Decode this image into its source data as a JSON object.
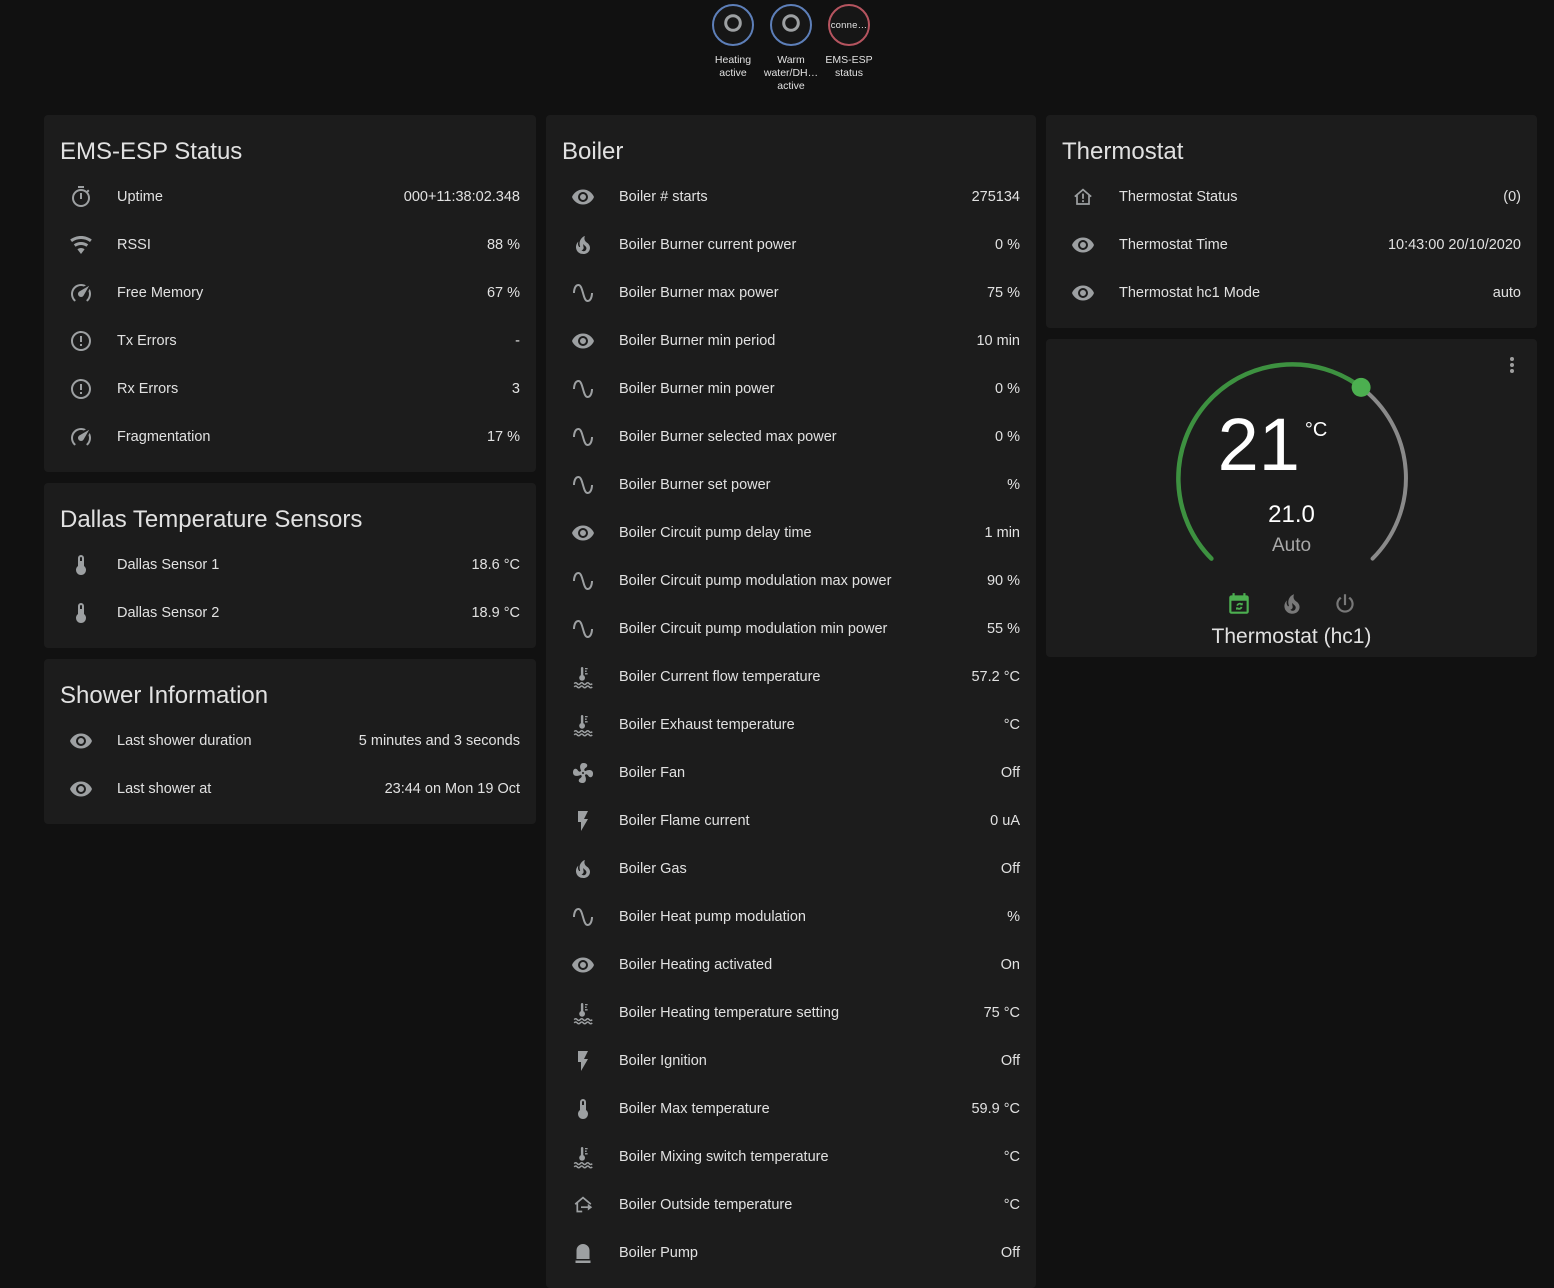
{
  "colors": {
    "background": "#111111",
    "card": "#1c1c1c",
    "text": "#e1e1e1",
    "muted": "#9e9e9e",
    "icon": "#9da0a2",
    "green": "#3d9140",
    "green_bright": "#4caf50",
    "arc_gray": "#8a8a8a",
    "badge_blue": "#5d7fb9",
    "badge_red": "#b5545f"
  },
  "badges": [
    {
      "name": "badge-heating-active",
      "style": "blue",
      "glyph": "ring-icon",
      "label": "Heating\nactive"
    },
    {
      "name": "badge-warm-water-dhw-active",
      "style": "blue",
      "glyph": "ring-icon",
      "label": "Warm\nwater/DH…\nactive"
    },
    {
      "name": "badge-ems-esp-status",
      "style": "red",
      "state_text": "conne…",
      "label": "EMS-ESP\nstatus"
    }
  ],
  "cards": {
    "ems": {
      "title": "EMS-ESP Status",
      "rows": [
        {
          "icon": "timer-icon",
          "label": "Uptime",
          "value": "000+11:38:02.348"
        },
        {
          "icon": "wifi-icon",
          "label": "RSSI",
          "value": "88 %"
        },
        {
          "icon": "gauge-icon",
          "label": "Free Memory",
          "value": "67 %"
        },
        {
          "icon": "alert-circle-icon",
          "label": "Tx Errors",
          "value": "-"
        },
        {
          "icon": "alert-circle-icon",
          "label": "Rx Errors",
          "value": "3"
        },
        {
          "icon": "gauge-icon",
          "label": "Fragmentation",
          "value": "17 %"
        }
      ]
    },
    "dallas": {
      "title": "Dallas Temperature Sensors",
      "rows": [
        {
          "icon": "thermometer-icon",
          "label": "Dallas Sensor 1",
          "value": "18.6 °C"
        },
        {
          "icon": "thermometer-icon",
          "label": "Dallas Sensor 2",
          "value": "18.9 °C"
        }
      ]
    },
    "shower": {
      "title": "Shower Information",
      "rows": [
        {
          "icon": "eye-icon",
          "label": "Last shower duration",
          "value": "5 minutes and 3 seconds"
        },
        {
          "icon": "eye-icon",
          "label": "Last shower at",
          "value": "23:44 on Mon 19 Oct"
        }
      ]
    },
    "boiler": {
      "title": "Boiler",
      "rows": [
        {
          "icon": "eye-icon",
          "label": "Boiler # starts",
          "value": "275134"
        },
        {
          "icon": "fire-icon",
          "label": "Boiler Burner current power",
          "value": "0 %"
        },
        {
          "icon": "sine-wave-icon",
          "label": "Boiler Burner max power",
          "value": "75 %"
        },
        {
          "icon": "eye-icon",
          "label": "Boiler Burner min period",
          "value": "10 min"
        },
        {
          "icon": "sine-wave-icon",
          "label": "Boiler Burner min power",
          "value": "0 %"
        },
        {
          "icon": "sine-wave-icon",
          "label": "Boiler Burner selected max power",
          "value": "0 %"
        },
        {
          "icon": "sine-wave-icon",
          "label": "Boiler Burner set power",
          "value": "%"
        },
        {
          "icon": "eye-icon",
          "label": "Boiler Circuit pump delay time",
          "value": "1 min"
        },
        {
          "icon": "sine-wave-icon",
          "label": "Boiler Circuit pump modulation max power",
          "value": "90 %"
        },
        {
          "icon": "sine-wave-icon",
          "label": "Boiler Circuit pump modulation min power",
          "value": "55 %"
        },
        {
          "icon": "coolant-thermometer-icon",
          "label": "Boiler Current flow temperature",
          "value": "57.2 °C"
        },
        {
          "icon": "coolant-thermometer-icon",
          "label": "Boiler Exhaust temperature",
          "value": "°C"
        },
        {
          "icon": "fan-icon",
          "label": "Boiler Fan",
          "value": "Off"
        },
        {
          "icon": "flash-icon",
          "label": "Boiler Flame current",
          "value": "0 uA"
        },
        {
          "icon": "fire-icon",
          "label": "Boiler Gas",
          "value": "Off"
        },
        {
          "icon": "sine-wave-icon",
          "label": "Boiler Heat pump modulation",
          "value": "%"
        },
        {
          "icon": "eye-icon",
          "label": "Boiler Heating activated",
          "value": "On"
        },
        {
          "icon": "coolant-thermometer-icon",
          "label": "Boiler Heating temperature setting",
          "value": "75 °C"
        },
        {
          "icon": "flash-icon",
          "label": "Boiler Ignition",
          "value": "Off"
        },
        {
          "icon": "thermometer-icon",
          "label": "Boiler Max temperature",
          "value": "59.9 °C"
        },
        {
          "icon": "coolant-thermometer-icon",
          "label": "Boiler Mixing switch temperature",
          "value": "°C"
        },
        {
          "icon": "home-export-icon",
          "label": "Boiler Outside temperature",
          "value": "°C"
        },
        {
          "icon": "pump-icon",
          "label": "Boiler Pump",
          "value": "Off"
        }
      ]
    },
    "thermostat": {
      "title": "Thermostat",
      "rows": [
        {
          "icon": "home-alert-icon",
          "label": "Thermostat Status",
          "value": "(0)"
        },
        {
          "icon": "eye-icon",
          "label": "Thermostat Time",
          "value": "10:43:00 20/10/2020"
        },
        {
          "icon": "eye-icon",
          "label": "Thermostat hc1 Mode",
          "value": "auto"
        }
      ]
    }
  },
  "dial": {
    "temperature": "21",
    "unit": "°C",
    "setpoint": "21.0",
    "mode": "Auto",
    "entity_name": "Thermostat (hc1)",
    "modes": [
      {
        "name": "mode-auto-button",
        "icon": "calendar-sync-icon",
        "active": true
      },
      {
        "name": "mode-heat-button",
        "icon": "flame-icon",
        "active": false
      },
      {
        "name": "mode-off-button",
        "icon": "power-icon",
        "active": false
      }
    ]
  }
}
